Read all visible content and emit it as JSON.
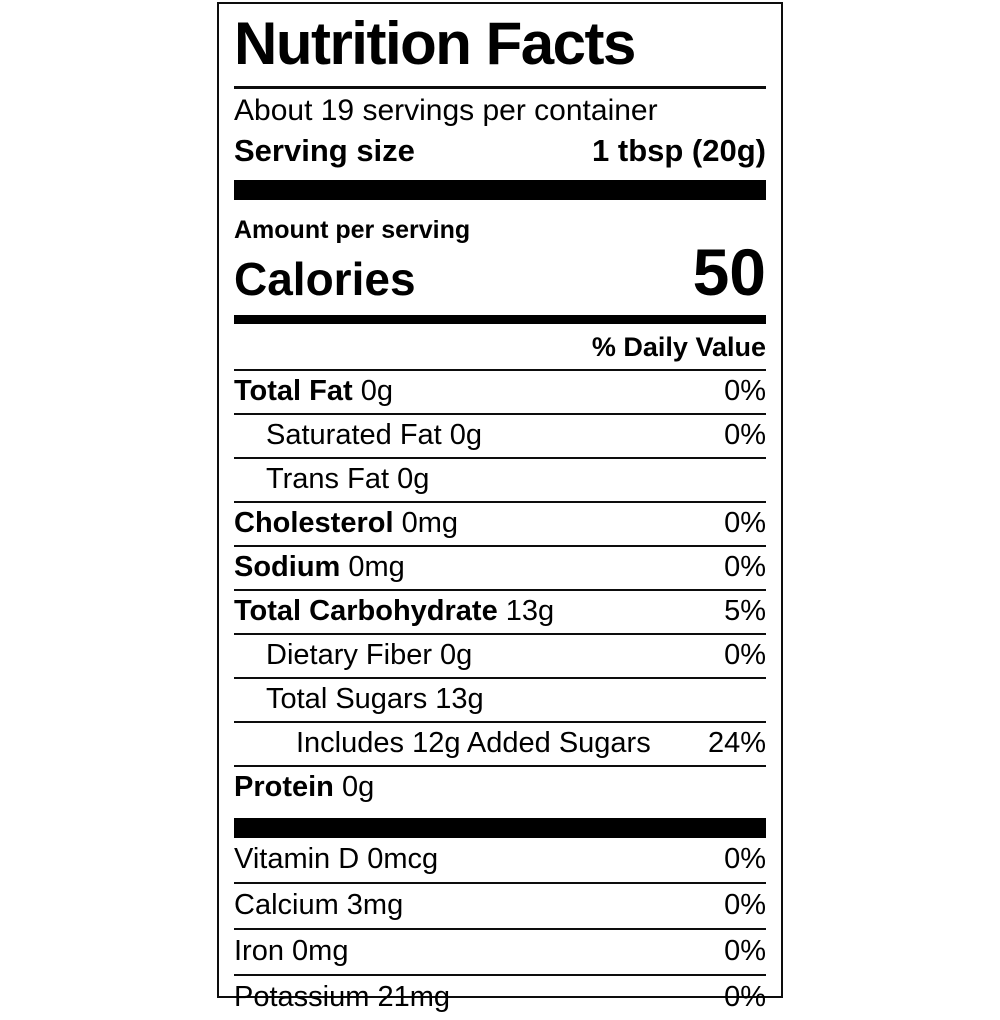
{
  "label": {
    "title": "Nutrition Facts",
    "servings_per_container": "About 19 servings per container",
    "serving_size_label": "Serving size",
    "serving_size_value": "1 tbsp (20g)",
    "amount_per_serving": "Amount per serving",
    "calories_label": "Calories",
    "calories_value": "50",
    "daily_value_header": "% Daily Value",
    "nutrients": [
      {
        "name": "Total Fat",
        "amount": "0g",
        "dv": "0%",
        "bold": true,
        "indent": 0
      },
      {
        "name": "Saturated Fat",
        "amount": "0g",
        "dv": "0%",
        "bold": false,
        "indent": 1
      },
      {
        "name": "Trans Fat",
        "amount": "0g",
        "dv": "",
        "bold": false,
        "indent": 1
      },
      {
        "name": "Cholesterol",
        "amount": "0mg",
        "dv": "0%",
        "bold": true,
        "indent": 0
      },
      {
        "name": "Sodium",
        "amount": "0mg",
        "dv": "0%",
        "bold": true,
        "indent": 0
      },
      {
        "name": "Total Carbohydrate",
        "amount": "13g",
        "dv": "5%",
        "bold": true,
        "indent": 0
      },
      {
        "name": "Dietary Fiber",
        "amount": "0g",
        "dv": "0%",
        "bold": false,
        "indent": 1
      },
      {
        "name": "Total Sugars",
        "amount": "13g",
        "dv": "",
        "bold": false,
        "indent": 1
      },
      {
        "name": "Includes 12g Added Sugars",
        "amount": "",
        "dv": "24%",
        "bold": false,
        "indent": 2
      },
      {
        "name": "Protein",
        "amount": "0g",
        "dv": "",
        "bold": true,
        "indent": 0
      }
    ],
    "micronutrients": [
      {
        "name": "Vitamin D",
        "amount": "0mcg",
        "dv": "0%"
      },
      {
        "name": "Calcium",
        "amount": "3mg",
        "dv": "0%"
      },
      {
        "name": "Iron",
        "amount": "0mg",
        "dv": "0%"
      },
      {
        "name": "Potassium",
        "amount": "21mg",
        "dv": "0%"
      }
    ],
    "colors": {
      "text": "#000000",
      "background": "#ffffff",
      "border": "#000000",
      "bar": "#000000"
    }
  }
}
